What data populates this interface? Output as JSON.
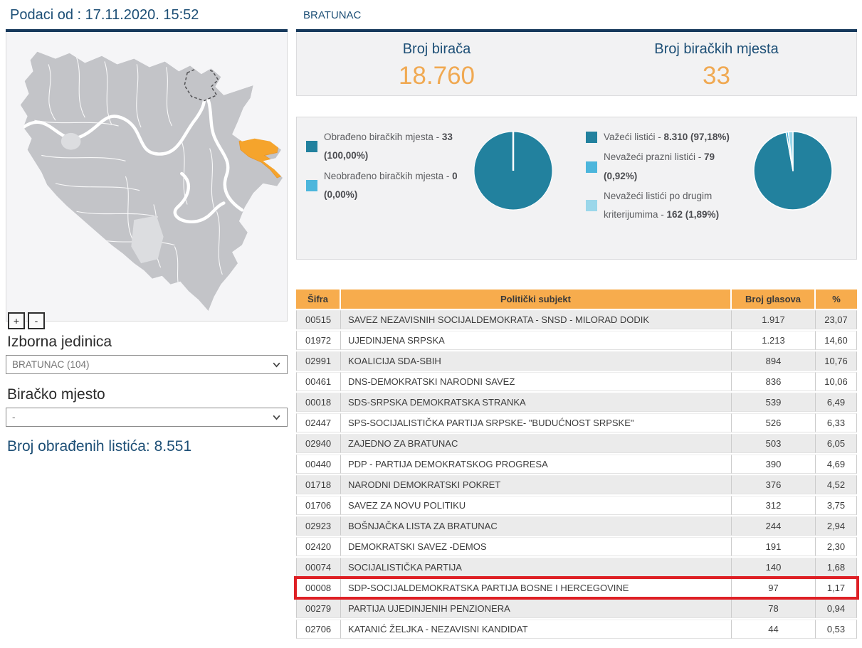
{
  "colors": {
    "navy_text": "#1d4f76",
    "navy_rule": "#17395c",
    "accent_orange": "#f0a952",
    "table_header_orange": "#f7ac4d",
    "highlight_red": "#de2025",
    "pie_teal": "#22819e",
    "pie_light_blue": "#4cb6dc",
    "pie_lighter_blue": "#9bd7ea",
    "map_selected_orange": "#f5a42c"
  },
  "left": {
    "header": "Podaci od : 17.11.2020. 15:52",
    "map": {
      "zoom_in": "+",
      "zoom_out": "-"
    },
    "izborna_label": "Izborna jedinica",
    "izborna_value": "BRATUNAC (104)",
    "biracko_label": "Biračko mjesto",
    "biracko_value": "-",
    "processed": "Broj obrađenih listića: 8.551"
  },
  "right": {
    "title": "BRATUNAC",
    "stats": [
      {
        "label": "Broj birača",
        "value": "18.760"
      },
      {
        "label": "Broj biračkih mjesta",
        "value": "33"
      }
    ]
  },
  "chart_data": [
    {
      "type": "pie",
      "title": "Obrađeno biračkih mjesta",
      "legend_position": "left",
      "slices": [
        {
          "label": "Obrađeno biračkih mjesta -",
          "value_text": "33 (100,00%)",
          "value": 100.0,
          "color": "#22819e"
        },
        {
          "label": "Neobrađeno biračkih mjesta -",
          "value_text": "0 (0,00%)",
          "value": 0.0,
          "color": "#4cb6dc"
        }
      ]
    },
    {
      "type": "pie",
      "title": "Listići",
      "legend_position": "left",
      "slices": [
        {
          "label": "Važeći listići -",
          "value_text": "8.310 (97,18%)",
          "value": 97.18,
          "color": "#22819e"
        },
        {
          "label": "Nevažeći prazni listići -",
          "value_text": "79 (0,92%)",
          "value": 0.92,
          "color": "#4cb6dc"
        },
        {
          "label": "Nevažeći listići po drugim kriterijumima -",
          "value_text": "162 (1,89%)",
          "value": 1.89,
          "color": "#9bd7ea"
        }
      ]
    }
  ],
  "table": {
    "headers": [
      "Šifra",
      "Politički subjekt",
      "Broj glasova",
      "%"
    ],
    "highlight_code": "00008",
    "rows": [
      [
        "00515",
        "SAVEZ NEZAVISNIH SOCIJALDEMOKRATA - SNSD - MILORAD DODIK",
        "1.917",
        "23,07"
      ],
      [
        "01972",
        "UJEDINJENA SRPSKA",
        "1.213",
        "14,60"
      ],
      [
        "02991",
        "KOALICIJA SDA-SBIH",
        "894",
        "10,76"
      ],
      [
        "00461",
        "DNS-DEMOKRATSKI NARODNI SAVEZ",
        "836",
        "10,06"
      ],
      [
        "00018",
        "SDS-SRPSKA DEMOKRATSKA STRANKA",
        "539",
        "6,49"
      ],
      [
        "02447",
        "SPS-SOCIJALISTIČKA PARTIJA SRPSKE- \"BUDUĆNOST SRPSKE\"",
        "526",
        "6,33"
      ],
      [
        "02940",
        "ZAJEDNO ZA BRATUNAC",
        "503",
        "6,05"
      ],
      [
        "00440",
        "PDP - PARTIJA DEMOKRATSKOG PROGRESA",
        "390",
        "4,69"
      ],
      [
        "01718",
        "NARODNI DEMOKRATSKI POKRET",
        "376",
        "4,52"
      ],
      [
        "01706",
        "SAVEZ ZA NOVU POLITIKU",
        "312",
        "3,75"
      ],
      [
        "02923",
        "BOŠNJAČKA LISTA ZA BRATUNAC",
        "244",
        "2,94"
      ],
      [
        "02420",
        "DEMOKRATSKI SAVEZ -DEMOS",
        "191",
        "2,30"
      ],
      [
        "00074",
        "SOCIJALISTIČKA PARTIJA",
        "140",
        "1,68"
      ],
      [
        "00008",
        "SDP-SOCIJALDEMOKRATSKA PARTIJA BOSNE I HERCEGOVINE",
        "97",
        "1,17"
      ],
      [
        "00279",
        "PARTIJA UJEDINJENIH PENZIONERA",
        "78",
        "0,94"
      ],
      [
        "02706",
        "KATANIĆ ŽELJKA - NEZAVISNI KANDIDAT",
        "44",
        "0,53"
      ]
    ]
  }
}
